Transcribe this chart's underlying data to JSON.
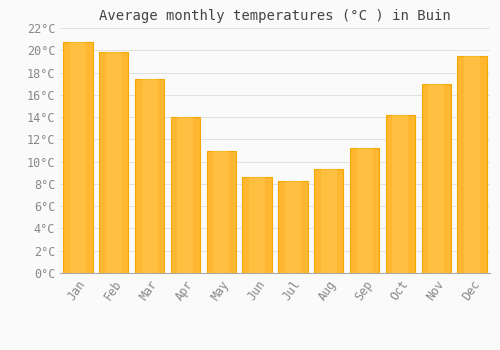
{
  "title": "Average monthly temperatures (°C ) in Buin",
  "months": [
    "Jan",
    "Feb",
    "Mar",
    "Apr",
    "May",
    "Jun",
    "Jul",
    "Aug",
    "Sep",
    "Oct",
    "Nov",
    "Dec"
  ],
  "temperatures": [
    20.7,
    19.8,
    17.4,
    14.0,
    11.0,
    8.6,
    8.3,
    9.3,
    11.2,
    14.2,
    17.0,
    19.5
  ],
  "bar_color_center": "#FFB732",
  "bar_color_edge": "#F5A800",
  "background_color": "#FAFAFA",
  "plot_bg_color": "#FAFAFA",
  "grid_color": "#DDDDDD",
  "ylim": [
    0,
    22
  ],
  "ytick_step": 2,
  "title_fontsize": 10,
  "tick_fontsize": 8.5,
  "tick_color": "#888888",
  "title_color": "#444444"
}
